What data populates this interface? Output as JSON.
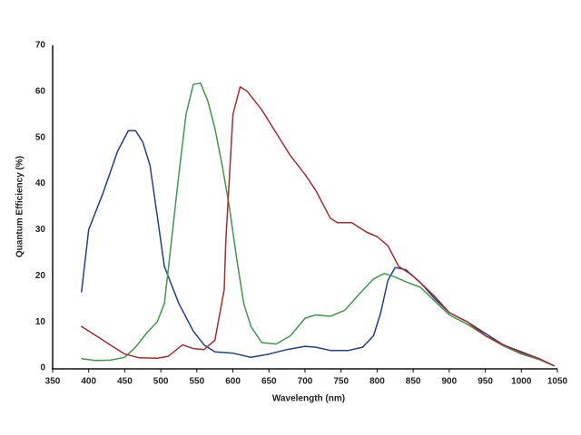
{
  "chart_data": {
    "type": "line",
    "x_label": "Wavelength (nm)",
    "y_label": "Quantum Efficiency (%)",
    "xlim": [
      350,
      1050
    ],
    "xticks": [
      350,
      400,
      450,
      500,
      550,
      600,
      650,
      700,
      750,
      800,
      850,
      900,
      950,
      1000,
      1050
    ],
    "ylim": [
      0,
      70
    ],
    "yticks": [
      0,
      10,
      20,
      30,
      40,
      50,
      60,
      70
    ],
    "grid": false,
    "series": [
      {
        "color": "#1f3f8f",
        "x": [
          390,
          400,
          420,
          440,
          455,
          465,
          475,
          485,
          495,
          505,
          525,
          545,
          560,
          575,
          600,
          625,
          650,
          675,
          700,
          715,
          735,
          760,
          780,
          795,
          805,
          815,
          825,
          840,
          860,
          880,
          900,
          925,
          950,
          975,
          1000,
          1025,
          1045
        ],
        "values": [
          16.5,
          30,
          38,
          47,
          51.5,
          51.5,
          49,
          44,
          33,
          22,
          14,
          8,
          5,
          3.5,
          3.2,
          2.3,
          3,
          4,
          4.7,
          4.5,
          3.8,
          3.8,
          4.5,
          7,
          12,
          19,
          21.8,
          21.3,
          18.5,
          15,
          12,
          10,
          7.5,
          5,
          3.5,
          2,
          0.5
        ]
      },
      {
        "color": "#3e9a4a",
        "x": [
          390,
          410,
          430,
          450,
          465,
          480,
          495,
          505,
          515,
          525,
          535,
          545,
          555,
          565,
          575,
          585,
          595,
          605,
          615,
          625,
          640,
          660,
          680,
          700,
          715,
          735,
          755,
          775,
          795,
          810,
          825,
          840,
          860,
          880,
          900,
          925,
          950,
          975,
          1000,
          1025,
          1045
        ],
        "values": [
          2,
          1.6,
          1.7,
          2.3,
          4.5,
          7.5,
          10,
          14,
          28,
          42,
          55,
          61.5,
          61.8,
          58,
          52,
          44,
          35,
          24,
          14,
          9,
          5.5,
          5.2,
          7,
          10.8,
          11.5,
          11.2,
          12.5,
          16,
          19.3,
          20.5,
          19.7,
          18.7,
          17.5,
          14.5,
          11.5,
          9.5,
          7,
          4.8,
          3,
          1.8,
          0.5
        ]
      },
      {
        "color": "#b0282e",
        "x": [
          390,
          410,
          430,
          450,
          470,
          495,
          510,
          530,
          545,
          560,
          575,
          588,
          590,
          600,
          610,
          620,
          640,
          660,
          680,
          700,
          715,
          735,
          745,
          765,
          785,
          800,
          815,
          830,
          845,
          860,
          880,
          900,
          925,
          950,
          975,
          1000,
          1025,
          1045
        ],
        "values": [
          9,
          7,
          5,
          3,
          2.2,
          2.1,
          2.5,
          5,
          4.2,
          4,
          6,
          17,
          27,
          55,
          61,
          60,
          56,
          51,
          46,
          42,
          38.5,
          32.5,
          31.5,
          31.5,
          29.5,
          28.5,
          26.5,
          22,
          20.5,
          18.5,
          15.5,
          12,
          10,
          7,
          5,
          3.3,
          2,
          0.5
        ]
      }
    ]
  }
}
